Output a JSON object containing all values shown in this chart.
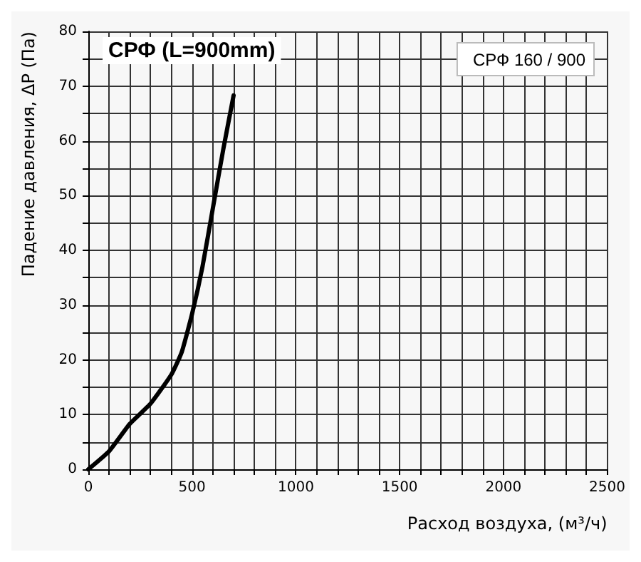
{
  "chart_data": {
    "type": "line",
    "title": "СРФ (L=900mm)",
    "xlabel": "Расход воздуха, (м³/ч)",
    "ylabel": "Падение давления, ΔР (Па)",
    "x": [
      0,
      100,
      200,
      300,
      400,
      450,
      500,
      550,
      600,
      650,
      700
    ],
    "series": [
      {
        "name": "СРФ 160 / 900",
        "color": "#000000",
        "values": [
          0,
          3.3,
          8.3,
          12,
          17.3,
          21.4,
          28.4,
          37,
          47.7,
          58.4,
          68.3
        ]
      }
    ],
    "xlim": [
      0,
      2500
    ],
    "xticks": [
      0,
      500,
      1000,
      1500,
      2000,
      2500
    ],
    "ylim": [
      0,
      80
    ],
    "yticks": [
      0,
      10,
      20,
      30,
      40,
      50,
      60,
      70,
      80
    ],
    "grid": true,
    "legend": "top right",
    "marker": "none",
    "line_style": "solid"
  }
}
